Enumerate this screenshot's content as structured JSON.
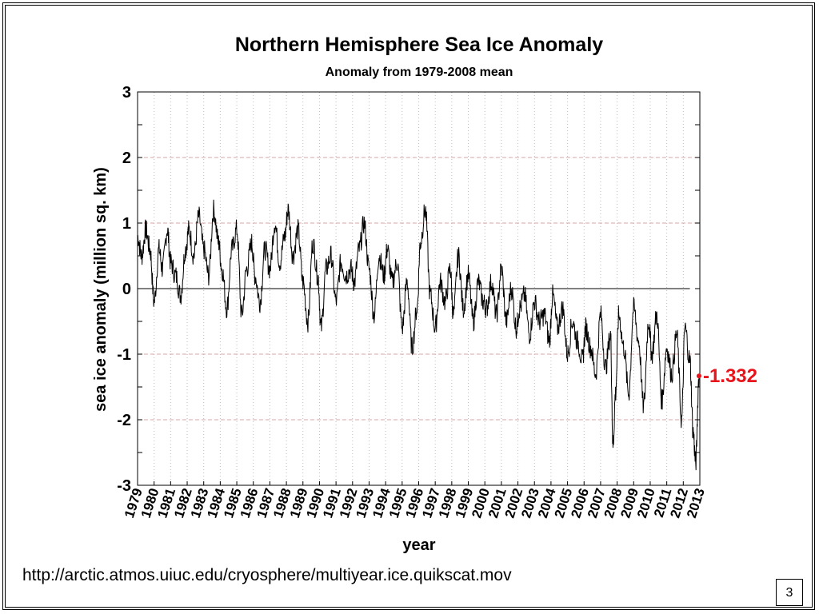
{
  "slide": {
    "source_url": "http://arctic.atmos.uiuc.edu/cryosphere/multiyear.ice.quikscat.mov",
    "page_number": "3"
  },
  "chart_data": {
    "type": "line",
    "title": "Northern Hemisphere Sea Ice Anomaly",
    "subtitle": "Anomaly from 1979-2008 mean",
    "xlabel": "year",
    "ylabel": "sea ice anomaly (million sq. km)",
    "xlim": [
      1979,
      2013
    ],
    "ylim": [
      -3,
      3
    ],
    "x_ticks": [
      "1979",
      "1980",
      "1981",
      "1982",
      "1983",
      "1984",
      "1985",
      "1986",
      "1987",
      "1988",
      "1989",
      "1990",
      "1991",
      "1992",
      "1993",
      "1994",
      "1995",
      "1996",
      "1997",
      "1998",
      "1999",
      "2000",
      "2001",
      "2002",
      "2003",
      "2004",
      "2005",
      "2006",
      "2007",
      "2008",
      "2009",
      "2010",
      "2011",
      "2012",
      "2013"
    ],
    "y_ticks": [
      3,
      2,
      1,
      0,
      -1,
      -2,
      -3
    ],
    "grid": true,
    "line_color": "#000000",
    "zero_line": true,
    "annotation": {
      "text": "-1.332",
      "x": 2012.95,
      "y": -1.332,
      "color": "#e8141c"
    },
    "series": [
      {
        "x": [
          1979.0,
          1979.25,
          1979.5,
          1979.75,
          1980.0,
          1980.3,
          1980.5,
          1980.8,
          1981.0,
          1981.3,
          1981.6,
          1981.9,
          1982.1,
          1982.4,
          1982.7,
          1983.0,
          1983.3,
          1983.6,
          1983.9,
          1984.1,
          1984.4,
          1984.7,
          1985.0,
          1985.3,
          1985.6,
          1985.9,
          1986.1,
          1986.4,
          1986.7,
          1987.0,
          1987.3,
          1987.6,
          1987.9,
          1988.1,
          1988.4,
          1988.7,
          1989.0,
          1989.3,
          1989.6,
          1989.9,
          1990.1,
          1990.4,
          1990.7,
          1991.0,
          1991.3,
          1991.6,
          1991.9,
          1992.1,
          1992.4,
          1992.7,
          1993.0,
          1993.3,
          1993.6,
          1993.9,
          1994.1,
          1994.4,
          1994.7,
          1995.0,
          1995.3,
          1995.6,
          1995.9,
          1996.1,
          1996.4,
          1996.7,
          1997.0,
          1997.3,
          1997.6,
          1997.9,
          1998.1,
          1998.4,
          1998.7,
          1999.0,
          1999.3,
          1999.6,
          1999.9,
          2000.1,
          2000.4,
          2000.7,
          2001.0,
          2001.3,
          2001.6,
          2001.9,
          2002.1,
          2002.4,
          2002.7,
          2003.0,
          2003.3,
          2003.6,
          2003.9,
          2004.1,
          2004.4,
          2004.7,
          2005.0,
          2005.3,
          2005.6,
          2005.9,
          2006.1,
          2006.4,
          2006.7,
          2007.0,
          2007.3,
          2007.6,
          2007.75,
          2007.9,
          2008.1,
          2008.4,
          2008.7,
          2009.0,
          2009.3,
          2009.6,
          2009.9,
          2010.1,
          2010.4,
          2010.7,
          2011.0,
          2011.3,
          2011.6,
          2011.9,
          2012.1,
          2012.4,
          2012.6,
          2012.75,
          2012.95
        ],
        "y": [
          0.8,
          0.5,
          0.9,
          0.6,
          -0.2,
          0.6,
          0.3,
          0.9,
          0.4,
          0.2,
          -0.1,
          0.6,
          0.9,
          0.5,
          1.1,
          0.6,
          0.2,
          1.2,
          0.7,
          0.3,
          -0.3,
          0.6,
          0.9,
          -0.4,
          0.3,
          0.7,
          0.2,
          -0.2,
          0.6,
          0.3,
          1.0,
          0.4,
          0.8,
          1.2,
          0.5,
          0.9,
          0.1,
          -0.5,
          0.7,
          0.2,
          -0.6,
          0.3,
          0.5,
          -0.2,
          0.4,
          0.2,
          0.3,
          0.1,
          0.6,
          1.0,
          0.3,
          -0.4,
          0.5,
          0.2,
          0.6,
          0.1,
          0.4,
          -0.6,
          0.1,
          -0.9,
          -0.3,
          0.7,
          1.2,
          -0.1,
          -0.6,
          0.1,
          -0.2,
          0.3,
          -0.4,
          0.5,
          -0.3,
          0.2,
          -0.5,
          0.1,
          -0.2,
          -0.3,
          0.1,
          -0.4,
          0.3,
          -0.5,
          0.0,
          -0.6,
          -0.3,
          -0.1,
          -0.7,
          -0.2,
          -0.5,
          -0.4,
          -0.8,
          -0.1,
          -0.6,
          -0.3,
          -1.0,
          -0.5,
          -0.8,
          -1.1,
          -0.6,
          -0.9,
          -1.3,
          -0.4,
          -1.2,
          -0.7,
          -2.4,
          -1.6,
          -0.4,
          -0.9,
          -1.6,
          -0.3,
          -0.8,
          -1.8,
          -0.5,
          -1.0,
          -0.4,
          -1.7,
          -0.9,
          -1.3,
          -0.7,
          -2.0,
          -0.6,
          -1.1,
          -2.2,
          -2.65,
          -1.332
        ]
      }
    ]
  }
}
